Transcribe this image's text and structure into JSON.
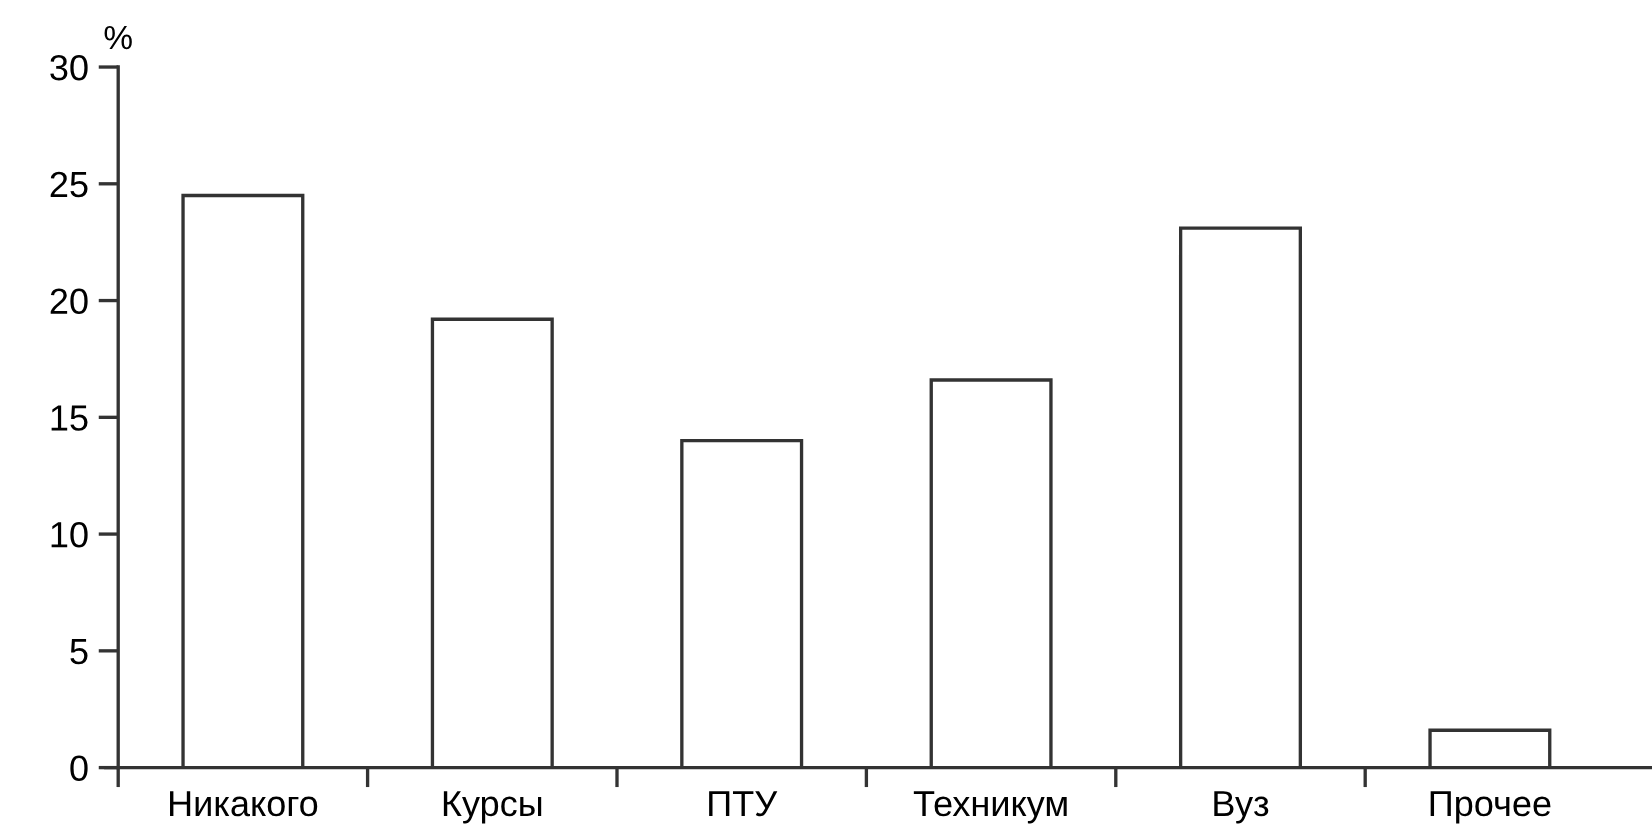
{
  "chart_data": {
    "type": "bar",
    "ylabel": "%",
    "categories": [
      "Никакого",
      "Курсы",
      "ПТУ",
      "Техникум",
      "Вуз",
      "Прочее"
    ],
    "values": [
      24.5,
      19.2,
      14.0,
      16.6,
      23.1,
      1.6
    ],
    "color": "#ffffff",
    "ylim": [
      0,
      30
    ],
    "yticks": [
      0,
      5,
      10,
      15,
      20,
      25,
      30
    ],
    "grid": false
  }
}
